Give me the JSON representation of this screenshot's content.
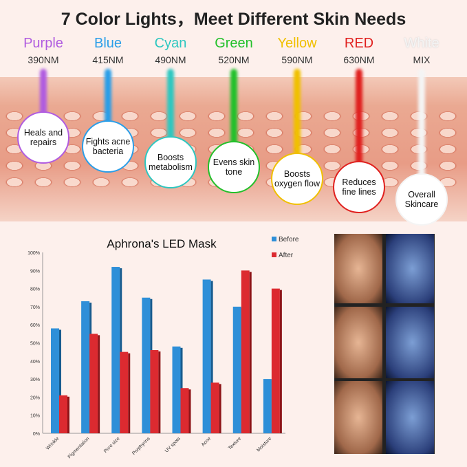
{
  "title": "7 Color Lights，Meet Different Skin Needs",
  "lights": [
    {
      "name": "Purple",
      "wavelength": "390NM",
      "benefit": "Heals and repairs",
      "color": "#b05ce0"
    },
    {
      "name": "Blue",
      "wavelength": "415NM",
      "benefit": "Fights acne bacteria",
      "color": "#2a9ee8"
    },
    {
      "name": "Cyan",
      "wavelength": "490NM",
      "benefit": "Boosts metabolism",
      "color": "#2ec7c0"
    },
    {
      "name": "Green",
      "wavelength": "520NM",
      "benefit": "Evens skin tone",
      "color": "#22c02a"
    },
    {
      "name": "Yellow",
      "wavelength": "590NM",
      "benefit": "Boosts oxygen flow",
      "color": "#f0c000"
    },
    {
      "name": "RED",
      "wavelength": "630NM",
      "benefit": "Reduces fine lines",
      "color": "#e0201e"
    },
    {
      "name": "White",
      "wavelength": "MIX",
      "benefit": "Overall Skincare",
      "color": "#f4f4f4"
    }
  ],
  "chart_data": {
    "type": "bar",
    "title": "Aphrona's LED Mask",
    "categories": [
      "Wrinkle",
      "Pigmentation",
      "Pore size",
      "Porphyrins",
      "UV spots",
      "Acne",
      "Texture",
      "Moisture"
    ],
    "series": [
      {
        "name": "Before",
        "color": "#2e8fd8",
        "values": [
          58,
          73,
          92,
          75,
          48,
          85,
          70,
          30
        ]
      },
      {
        "name": "After",
        "color": "#dc2a30",
        "values": [
          21,
          55,
          45,
          46,
          25,
          28,
          90,
          80
        ]
      }
    ],
    "ylim": [
      0,
      100
    ],
    "yticks": [
      "0%",
      "10%",
      "20%",
      "30%",
      "40%",
      "50%",
      "60%",
      "70%",
      "80%",
      "90%",
      "100%"
    ],
    "legend": "top-right"
  }
}
